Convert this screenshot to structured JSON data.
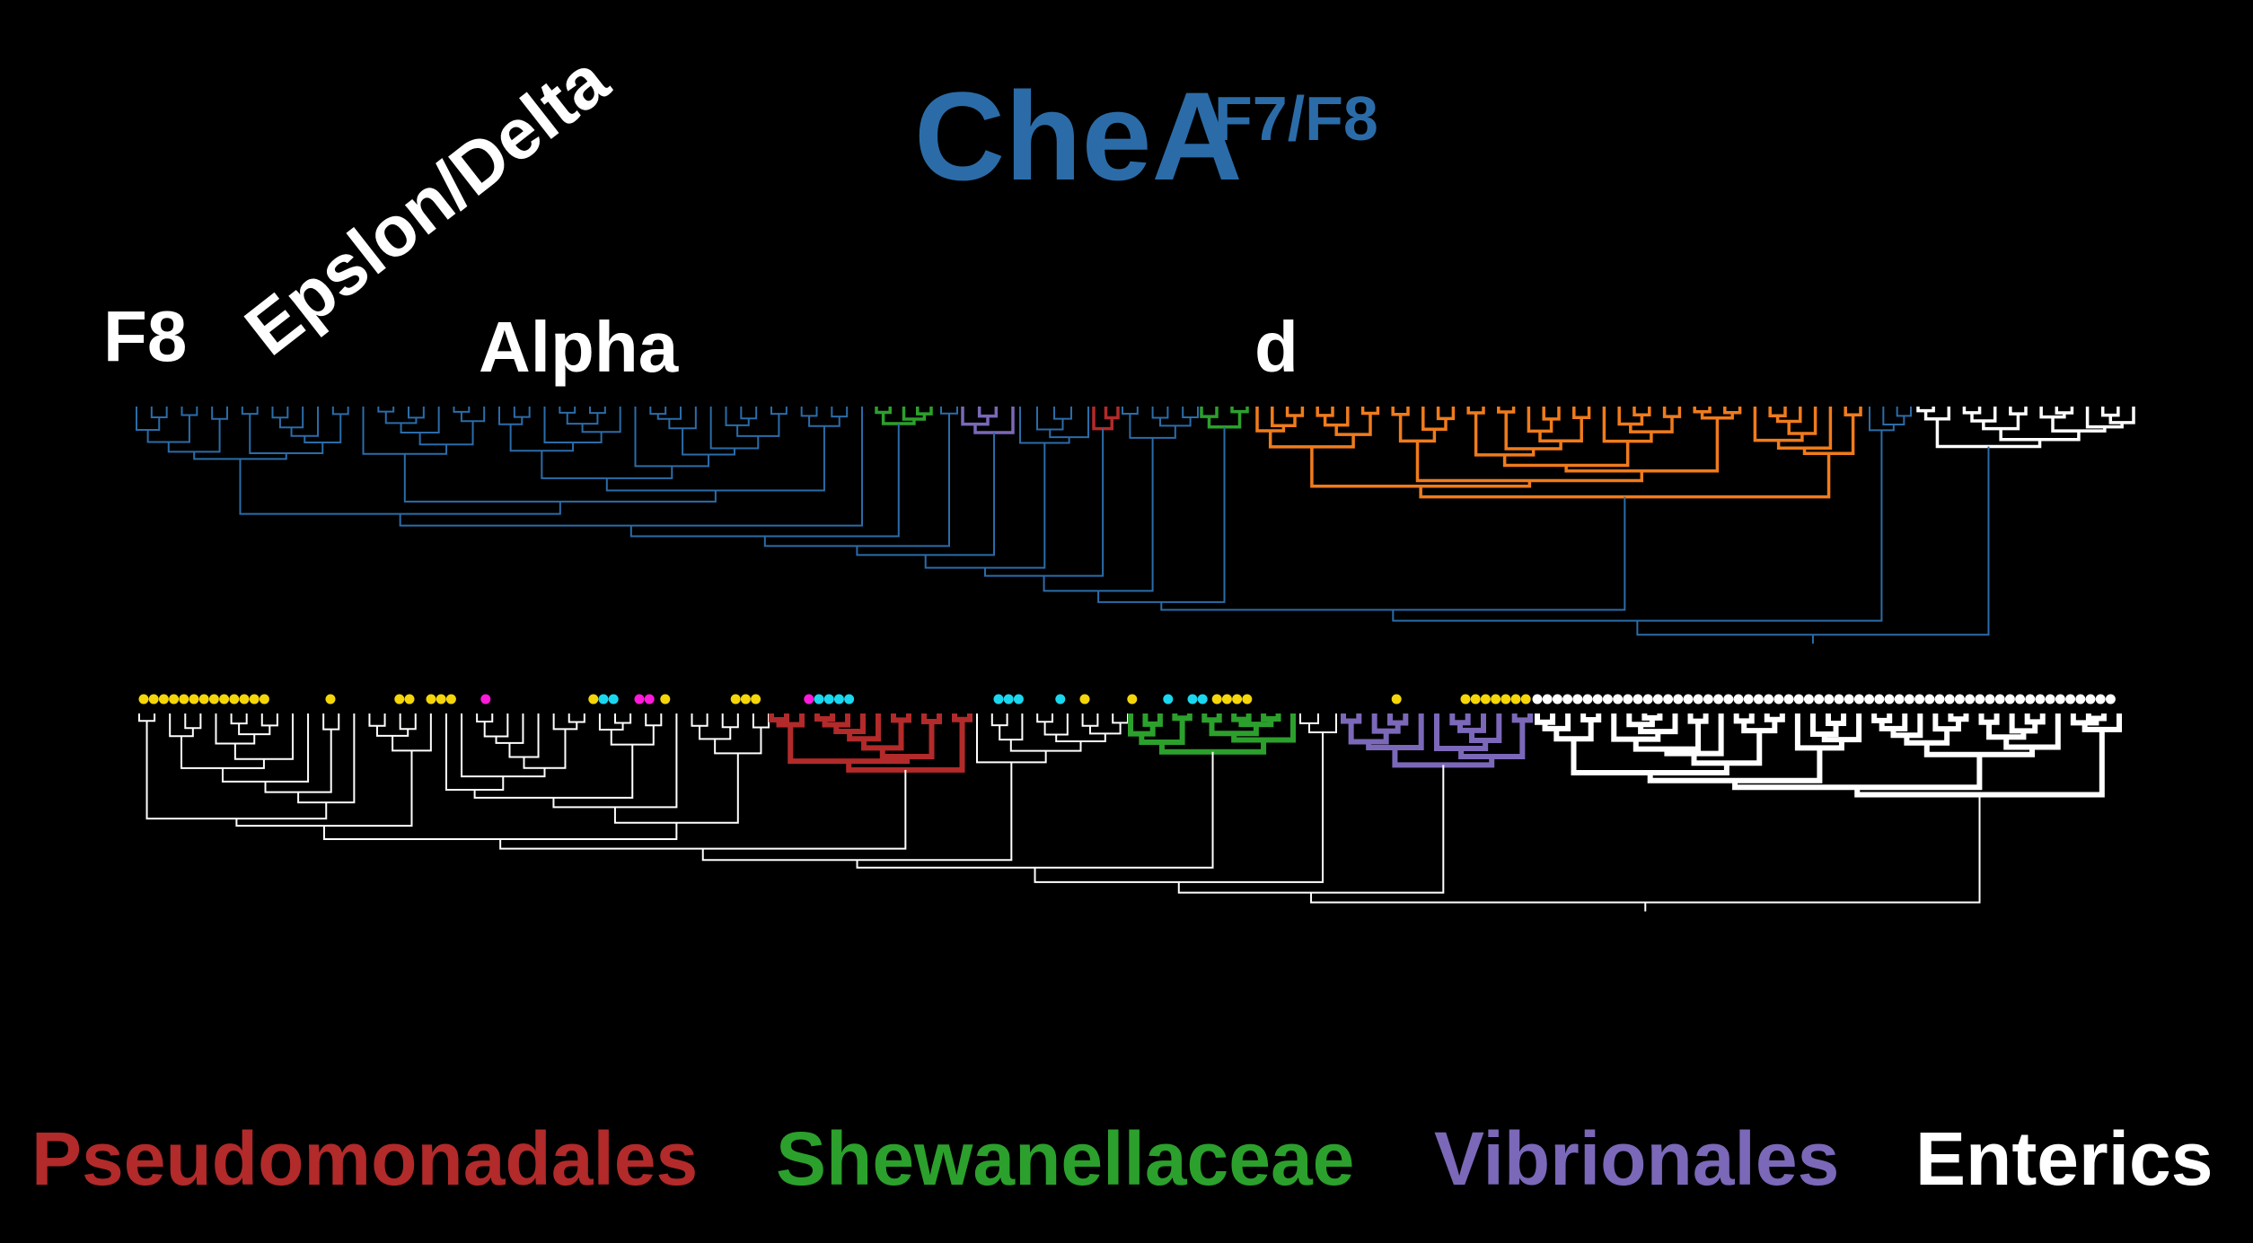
{
  "title": {
    "main": "CheA",
    "superscript": "F7/F8"
  },
  "labels": [
    "F8",
    "Epslon/Delta",
    "Alpha",
    "d"
  ],
  "legend": [
    "Pseudomonadales",
    "Shewanellaceae",
    "Vibrionales",
    "Enterics"
  ]
}
